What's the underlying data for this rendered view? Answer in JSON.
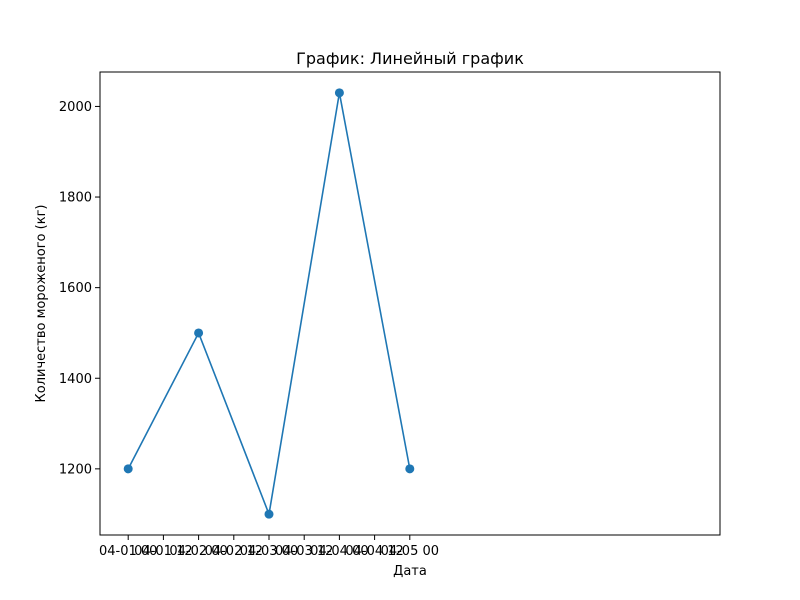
{
  "chart_data": {
    "type": "line",
    "title": "График: Линейный график",
    "xlabel": "Дата",
    "ylabel": "Количество мороженого (кг)",
    "x": [
      "04-01 00",
      "04-02 00",
      "04-03 00",
      "04-04 00",
      "04-05 00"
    ],
    "series": [
      {
        "values": [
          1200,
          1500,
          1100,
          2030,
          1200
        ]
      }
    ],
    "x_ticks": [
      "04-01 00",
      "04-01 12",
      "04-02 00",
      "04-02 12",
      "04-03 00",
      "04-03 12",
      "04-04 00",
      "04-04 12",
      "04-05 00"
    ],
    "y_ticks": [
      1200,
      1400,
      1600,
      1800,
      2000
    ],
    "ylim": [
      1054,
      2076
    ],
    "grid": false,
    "color": "#1f77b4"
  }
}
